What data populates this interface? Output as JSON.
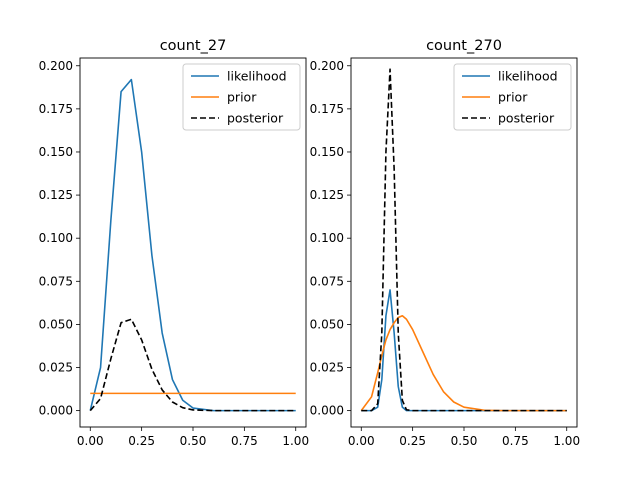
{
  "chart_data": [
    {
      "type": "line",
      "title": "count_27",
      "xlabel": "",
      "ylabel": "",
      "xlim": [
        -0.05,
        1.05
      ],
      "ylim": [
        -0.0095,
        0.2045
      ],
      "x_ticks": [
        0.0,
        0.25,
        0.5,
        0.75,
        1.0
      ],
      "x_tick_labels": [
        "0.00",
        "0.25",
        "0.50",
        "0.75",
        "1.00"
      ],
      "y_ticks": [
        0.0,
        0.025,
        0.05,
        0.075,
        0.1,
        0.125,
        0.15,
        0.175,
        0.2
      ],
      "y_tick_labels": [
        "0.000",
        "0.025",
        "0.050",
        "0.075",
        "0.100",
        "0.125",
        "0.150",
        "0.175",
        "0.200"
      ],
      "grid": false,
      "legend_position": "top-right",
      "x": [
        0.0,
        0.05,
        0.1,
        0.15,
        0.2,
        0.25,
        0.3,
        0.35,
        0.4,
        0.45,
        0.5,
        0.6,
        0.7,
        0.8,
        0.9,
        1.0
      ],
      "series": [
        {
          "name": "likelihood",
          "color": "#1f77b4",
          "style": "solid",
          "values": [
            0.0,
            0.025,
            0.11,
            0.185,
            0.192,
            0.15,
            0.09,
            0.045,
            0.018,
            0.006,
            0.0015,
            0.0,
            0.0,
            0.0,
            0.0,
            0.0
          ]
        },
        {
          "name": "prior",
          "color": "#ff7f0e",
          "style": "solid",
          "values": [
            0.01,
            0.01,
            0.01,
            0.01,
            0.01,
            0.01,
            0.01,
            0.01,
            0.01,
            0.01,
            0.01,
            0.01,
            0.01,
            0.01,
            0.01,
            0.01
          ]
        },
        {
          "name": "posterior",
          "color": "#000000",
          "style": "dashed",
          "values": [
            0.0,
            0.007,
            0.03,
            0.051,
            0.053,
            0.041,
            0.024,
            0.012,
            0.005,
            0.0017,
            0.0004,
            0.0,
            0.0,
            0.0,
            0.0,
            0.0
          ]
        }
      ]
    },
    {
      "type": "line",
      "title": "count_270",
      "xlabel": "",
      "ylabel": "",
      "xlim": [
        -0.05,
        1.05
      ],
      "ylim": [
        -0.0095,
        0.2045
      ],
      "x_ticks": [
        0.0,
        0.25,
        0.5,
        0.75,
        1.0
      ],
      "x_tick_labels": [
        "0.00",
        "0.25",
        "0.50",
        "0.75",
        "1.00"
      ],
      "y_ticks": [
        0.0,
        0.025,
        0.05,
        0.075,
        0.1,
        0.125,
        0.15,
        0.175,
        0.2
      ],
      "y_tick_labels": [
        "0.000",
        "0.025",
        "0.050",
        "0.075",
        "0.100",
        "0.125",
        "0.150",
        "0.175",
        "0.200"
      ],
      "grid": false,
      "legend_position": "top-right",
      "x": [
        0.0,
        0.05,
        0.08,
        0.1,
        0.12,
        0.14,
        0.16,
        0.18,
        0.2,
        0.22,
        0.25,
        0.3,
        0.35,
        0.4,
        0.45,
        0.5,
        0.6,
        0.7,
        0.8,
        0.9,
        1.0
      ],
      "series": [
        {
          "name": "likelihood",
          "color": "#1f77b4",
          "style": "solid",
          "values": [
            0.0,
            0.0,
            0.002,
            0.018,
            0.055,
            0.07,
            0.045,
            0.014,
            0.002,
            0.0,
            0.0,
            0.0,
            0.0,
            0.0,
            0.0,
            0.0,
            0.0,
            0.0,
            0.0,
            0.0,
            0.0
          ]
        },
        {
          "name": "prior",
          "color": "#ff7f0e",
          "style": "solid",
          "values": [
            0.0,
            0.008,
            0.022,
            0.032,
            0.041,
            0.047,
            0.051,
            0.054,
            0.055,
            0.053,
            0.047,
            0.034,
            0.021,
            0.011,
            0.005,
            0.002,
            0.0002,
            0.0,
            0.0,
            0.0,
            0.0
          ]
        },
        {
          "name": "posterior",
          "color": "#000000",
          "style": "dashed",
          "values": [
            0.0,
            0.0,
            0.004,
            0.045,
            0.15,
            0.198,
            0.14,
            0.045,
            0.006,
            0.0005,
            0.0,
            0.0,
            0.0,
            0.0,
            0.0,
            0.0,
            0.0,
            0.0,
            0.0,
            0.0,
            0.0
          ]
        }
      ]
    }
  ]
}
